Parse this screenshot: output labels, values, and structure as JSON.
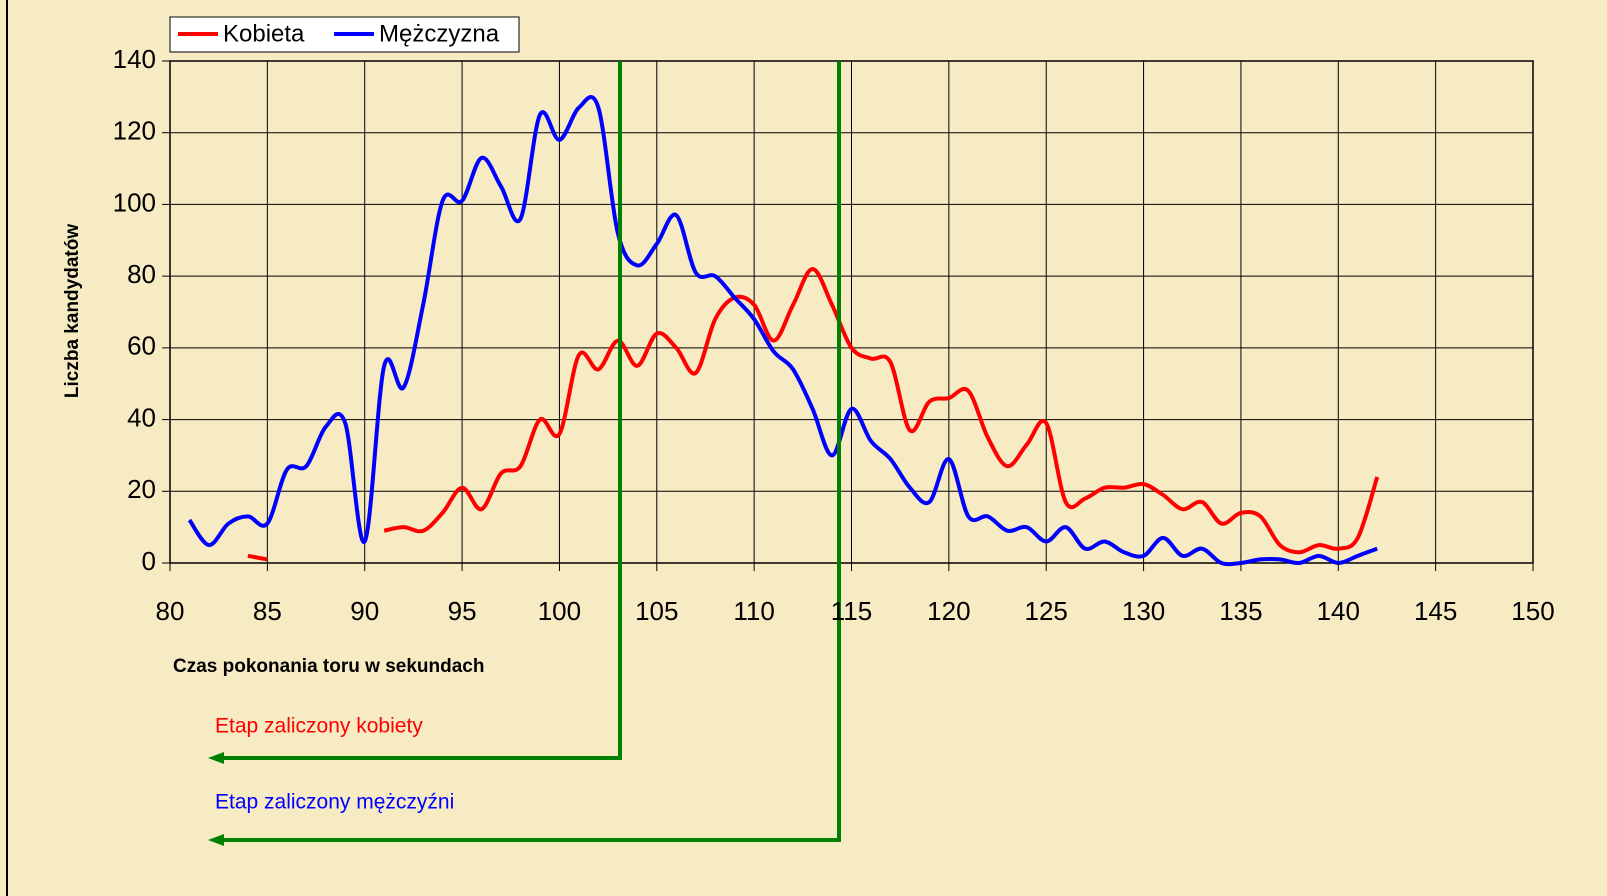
{
  "chart_data": {
    "type": "line",
    "x": [
      81,
      82,
      83,
      84,
      85,
      86,
      87,
      88,
      89,
      90,
      91,
      92,
      93,
      94,
      95,
      96,
      97,
      98,
      99,
      100,
      101,
      102,
      103,
      104,
      105,
      106,
      107,
      108,
      109,
      110,
      111,
      112,
      113,
      114,
      115,
      116,
      117,
      118,
      119,
      120,
      121,
      122,
      123,
      124,
      125,
      126,
      127,
      128,
      129,
      130,
      131,
      132,
      133,
      134,
      135,
      136,
      137,
      138,
      139,
      140,
      141,
      142
    ],
    "series": [
      {
        "name": "Kobieta",
        "color": "#ff0000",
        "values": [
          null,
          null,
          null,
          2,
          1,
          null,
          null,
          null,
          null,
          null,
          9,
          10,
          9,
          14,
          21,
          15,
          25,
          27,
          40,
          36,
          58,
          54,
          62,
          55,
          64,
          60,
          53,
          68,
          74,
          72,
          62,
          72,
          82,
          72,
          60,
          57,
          56,
          37,
          45,
          46,
          48,
          35,
          27,
          33,
          39,
          17,
          18,
          21,
          21,
          22,
          19,
          15,
          17,
          11,
          14,
          13,
          5,
          3,
          5,
          4,
          7,
          24
        ]
      },
      {
        "name": "Mężczyzna",
        "color": "#0000ff",
        "values": [
          12,
          5,
          11,
          13,
          11,
          26,
          27,
          38,
          39,
          6,
          55,
          49,
          72,
          101,
          101,
          113,
          105,
          96,
          125,
          118,
          127,
          127,
          92,
          83,
          89,
          97,
          81,
          80,
          74,
          68,
          59,
          54,
          43,
          30,
          43,
          34,
          29,
          21,
          17,
          29,
          13,
          13,
          9,
          10,
          6,
          10,
          4,
          6,
          3,
          2,
          7,
          2,
          4,
          0,
          0,
          1,
          1,
          0,
          2,
          0,
          2,
          4
        ]
      }
    ],
    "xlim": [
      80,
      150
    ],
    "xticks": [
      80,
      85,
      90,
      95,
      100,
      105,
      110,
      115,
      120,
      125,
      130,
      135,
      140,
      145,
      150
    ],
    "ylim": [
      0,
      140
    ],
    "yticks": [
      0,
      20,
      40,
      60,
      80,
      100,
      120,
      140
    ],
    "xlabel": "Czas pokonania toru w sekundach",
    "ylabel": "Liczba kandydatów",
    "grid": true,
    "legend": "top-left",
    "annotations": [
      {
        "text": "Etap zaliczony kobiety",
        "color": "#ff0000"
      },
      {
        "text": "Etap zaliczony mężczyźni",
        "color": "#0000ff"
      }
    ]
  }
}
